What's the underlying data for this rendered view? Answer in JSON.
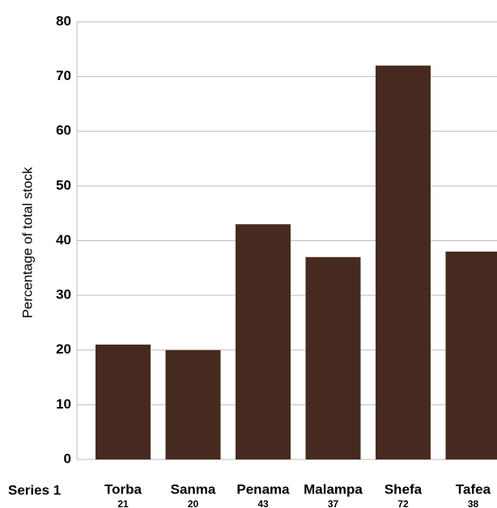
{
  "chart_data": {
    "type": "bar",
    "y_axis_label": "Percentage of total stock",
    "categories": [
      "Torba",
      "Sanma",
      "Penama",
      "Malampa",
      "Shefa",
      "Tafea"
    ],
    "series": [
      {
        "name": "Series 1",
        "color": "#472a1f",
        "values": [
          21,
          20,
          43,
          37,
          72,
          38
        ]
      }
    ],
    "ylim": [
      0,
      80
    ],
    "yticks": [
      0,
      10,
      20,
      30,
      40,
      50,
      60,
      70,
      80
    ],
    "grid": true
  }
}
